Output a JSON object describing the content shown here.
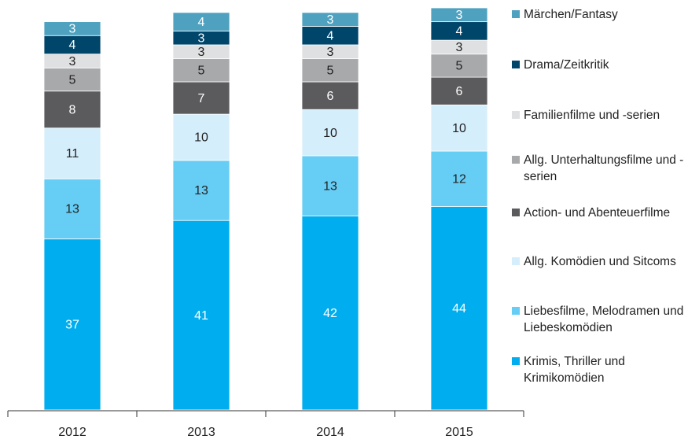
{
  "chart_data": {
    "type": "stacked-bar",
    "categories": [
      "2012",
      "2013",
      "2014",
      "2015"
    ],
    "series": [
      {
        "name": "Krimis, Thriller und Krimikomödien",
        "color": "#00aeef",
        "values": [
          37,
          41,
          42,
          44
        ]
      },
      {
        "name": "Liebesfilme, Melodramen und Liebeskomödien",
        "color": "#66cdf5",
        "values": [
          13,
          13,
          13,
          12
        ]
      },
      {
        "name": "Allg. Komödien und Sitcoms",
        "color": "#d5eefb",
        "values": [
          11,
          10,
          10,
          10
        ]
      },
      {
        "name": "Action- und Abenteuerfilme",
        "color": "#5b5b5d",
        "values": [
          8,
          7,
          6,
          6
        ]
      },
      {
        "name": "Allg. Unterhaltungsfilme und -serien",
        "color": "#a8a9ab",
        "values": [
          5,
          5,
          5,
          5
        ]
      },
      {
        "name": "Familienfilme und -serien",
        "color": "#dfe0e1",
        "values": [
          3,
          3,
          3,
          3
        ]
      },
      {
        "name": "Drama/Zeitkritik",
        "color": "#00456a",
        "values": [
          4,
          3,
          4,
          4
        ]
      },
      {
        "name": "Märchen/Fantasy",
        "color": "#4ea2c0",
        "values": [
          3,
          4,
          3,
          3
        ]
      }
    ]
  }
}
